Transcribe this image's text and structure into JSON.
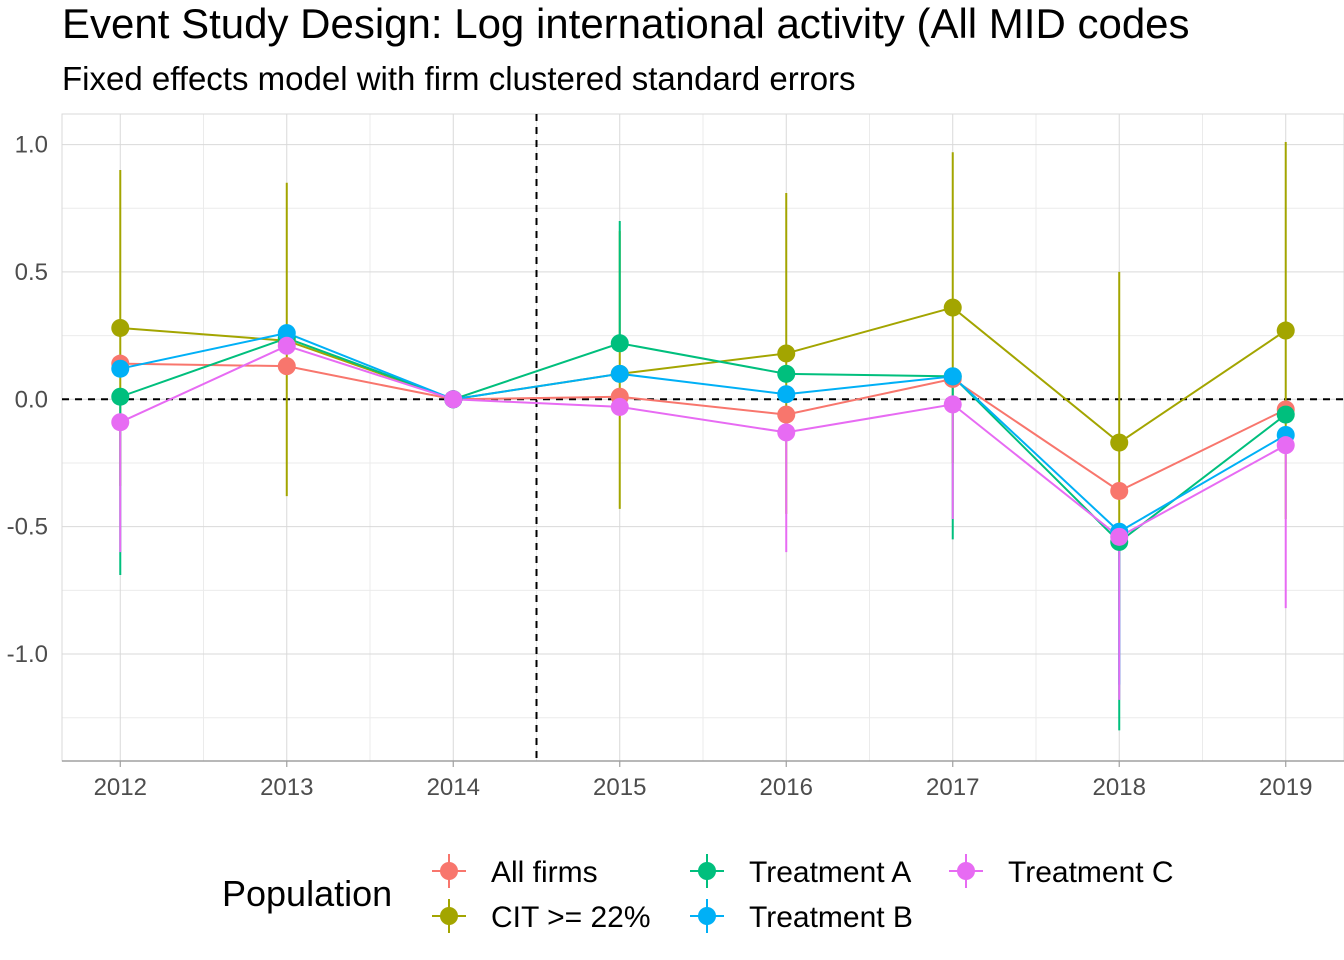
{
  "chart_data": {
    "type": "line",
    "title": "Event Study Design: Log international activity (All MID codes",
    "subtitle": "Fixed effects model with firm clustered standard errors",
    "xlabel": "",
    "ylabel": "",
    "x": [
      2012,
      2013,
      2014,
      2015,
      2016,
      2017,
      2018,
      2019
    ],
    "x_tick_labels": [
      "2012",
      "2013",
      "2014",
      "2015",
      "2016",
      "2017",
      "2018",
      "2019"
    ],
    "xlim": [
      2011.65,
      2019.35
    ],
    "ylim": [
      -1.42,
      1.12
    ],
    "y_ticks": [
      -1.0,
      -0.5,
      0.0,
      0.5,
      1.0
    ],
    "y_tick_labels": [
      "-1.0",
      "-0.5",
      "0.0",
      "0.5",
      "1.0"
    ],
    "grid": true,
    "reference_lines": {
      "horizontal_y": 0.0,
      "vertical_x": 2014.5,
      "style": "dashed"
    },
    "legend": {
      "title": "Population",
      "position": "bottom"
    },
    "series": [
      {
        "name": "All firms",
        "color": "#F8766D",
        "values": [
          0.14,
          0.13,
          0.0,
          0.01,
          -0.06,
          0.08,
          -0.36,
          -0.04
        ],
        "ci_low": [
          null,
          null,
          null,
          null,
          null,
          null,
          null,
          null
        ],
        "ci_high": [
          null,
          null,
          null,
          null,
          null,
          null,
          null,
          null
        ]
      },
      {
        "name": "CIT >= 22%",
        "color": "#A3A500",
        "values": [
          0.28,
          0.23,
          0.0,
          0.1,
          0.18,
          0.36,
          -0.17,
          0.27
        ],
        "ci_low": [
          -0.34,
          -0.38,
          null,
          -0.43,
          -0.45,
          -0.25,
          -0.83,
          -0.47
        ],
        "ci_high": [
          0.9,
          0.85,
          null,
          0.66,
          0.81,
          0.97,
          0.5,
          1.01
        ]
      },
      {
        "name": "Treatment A",
        "color": "#00BF7D",
        "values": [
          0.01,
          0.24,
          0.0,
          0.22,
          0.1,
          0.09,
          -0.56,
          -0.06
        ],
        "ci_low": [
          -0.69,
          null,
          null,
          null,
          null,
          -0.55,
          -1.3,
          null
        ],
        "ci_high": [
          null,
          null,
          null,
          0.7,
          null,
          null,
          null,
          null
        ]
      },
      {
        "name": "Treatment B",
        "color": "#00B0F6",
        "values": [
          0.12,
          0.26,
          0.0,
          0.1,
          0.02,
          0.09,
          -0.52,
          -0.14
        ],
        "ci_low": [
          null,
          null,
          null,
          null,
          null,
          null,
          -1.12,
          null
        ],
        "ci_high": [
          null,
          null,
          null,
          null,
          null,
          null,
          null,
          null
        ]
      },
      {
        "name": "Treatment C",
        "color": "#E76BF3",
        "values": [
          -0.09,
          0.21,
          0.0,
          -0.03,
          -0.13,
          -0.02,
          -0.54,
          -0.18
        ],
        "ci_low": [
          -0.6,
          null,
          null,
          null,
          -0.6,
          -0.47,
          -1.18,
          -0.82
        ],
        "ci_high": [
          null,
          null,
          null,
          null,
          null,
          null,
          null,
          null
        ]
      }
    ]
  }
}
